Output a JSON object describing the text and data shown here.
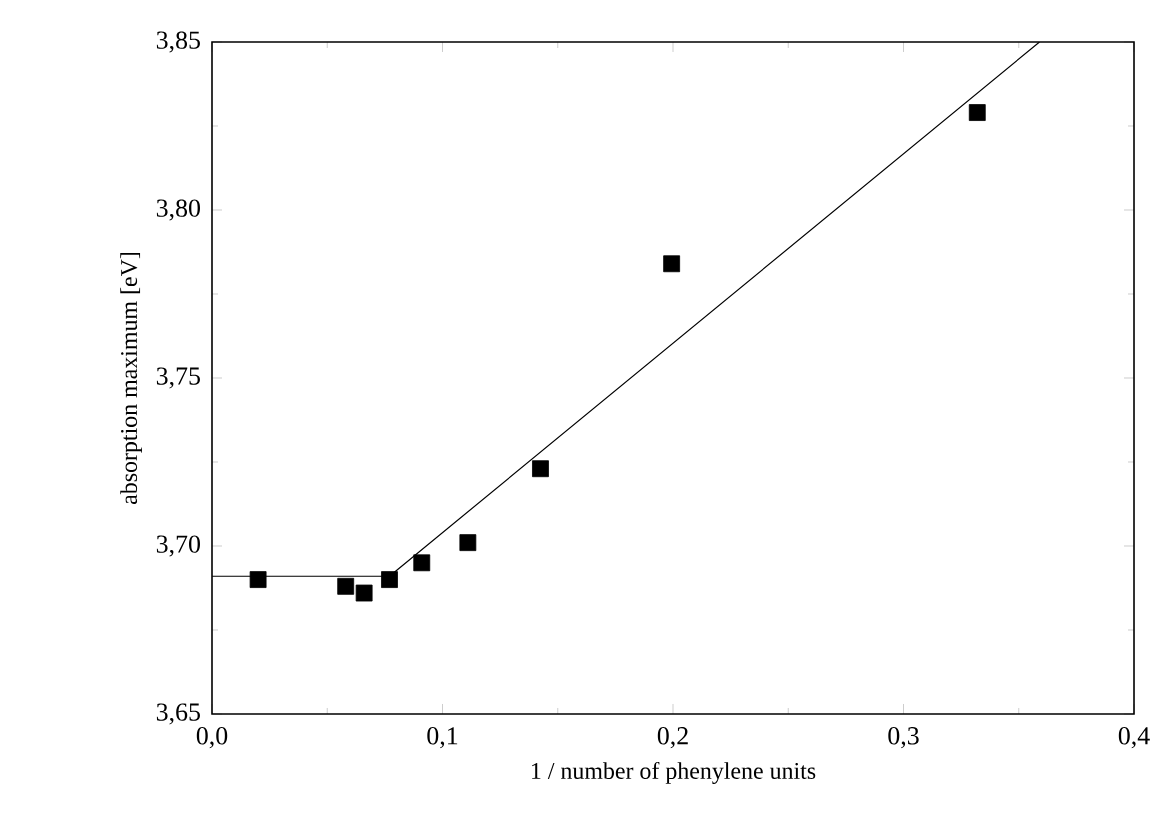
{
  "chart_data": {
    "type": "scatter",
    "xlabel": "1 / number of phenylene units",
    "ylabel": "absorption maximum [eV]",
    "xlim": [
      0,
      0.4
    ],
    "ylim": [
      3.65,
      3.85
    ],
    "xticks": [
      {
        "value": 0,
        "label": "0,0"
      },
      {
        "value": 0.1,
        "label": "0,1"
      },
      {
        "value": 0.2,
        "label": "0,2"
      },
      {
        "value": 0.3,
        "label": "0,3"
      },
      {
        "value": 0.4,
        "label": "0,4"
      }
    ],
    "yticks": [
      {
        "value": 3.65,
        "label": "3,65"
      },
      {
        "value": 3.7,
        "label": "3,70"
      },
      {
        "value": 3.75,
        "label": "3,75"
      },
      {
        "value": 3.8,
        "label": "3,80"
      },
      {
        "value": 3.85,
        "label": "3,85"
      }
    ],
    "marker": "square",
    "line_style": "solid",
    "series": [
      {
        "color": "#000000",
        "x": [
          0.02,
          0.058,
          0.066,
          0.077,
          0.091,
          0.111,
          0.1425,
          0.1994,
          0.332
        ],
        "values": [
          3.69,
          3.688,
          3.686,
          3.69,
          3.695,
          3.701,
          3.723,
          3.784,
          3.829
        ]
      },
      {
        "type": "line",
        "color": "#000000",
        "marker": "none",
        "x": [
          0,
          0.077,
          0.359
        ],
        "values": [
          3.691,
          3.691,
          3.85
        ]
      }
    ]
  }
}
